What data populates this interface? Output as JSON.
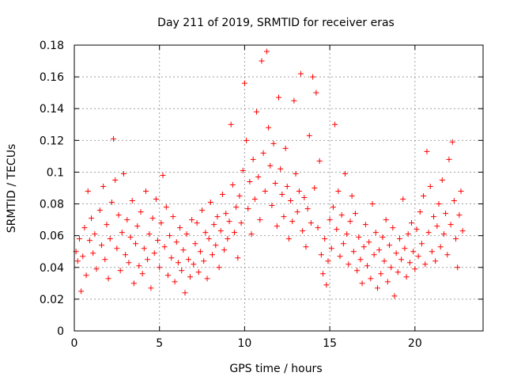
{
  "chart_data": {
    "type": "scatter",
    "title": "Day 211 of 2019, SRMTID for receiver eras",
    "xlabel": "GPS time / hours",
    "ylabel": "SRMTID / TECUs",
    "xlim": [
      0,
      24
    ],
    "ylim": [
      0,
      0.18
    ],
    "x_ticks": [
      0,
      5,
      10,
      15,
      20
    ],
    "x_tick_labels": [
      "0",
      "5",
      "10",
      "15",
      "20"
    ],
    "y_ticks": [
      0,
      0.02,
      0.04,
      0.06,
      0.08,
      0.1,
      0.12,
      0.14,
      0.16,
      0.18
    ],
    "y_tick_labels": [
      "0",
      "0.02",
      "0.04",
      "0.06",
      "0.08",
      "0.1",
      "0.12",
      "0.14",
      "0.16",
      "0.18"
    ],
    "grid": true,
    "marker": "+",
    "color": "#ff0000",
    "series": [
      {
        "name": "SRMTID",
        "points": [
          [
            0.1,
            0.05
          ],
          [
            0.2,
            0.044
          ],
          [
            0.3,
            0.058
          ],
          [
            0.4,
            0.025
          ],
          [
            0.5,
            0.047
          ],
          [
            0.6,
            0.065
          ],
          [
            0.7,
            0.035
          ],
          [
            0.8,
            0.088
          ],
          [
            0.9,
            0.057
          ],
          [
            1.0,
            0.071
          ],
          [
            1.1,
            0.049
          ],
          [
            1.2,
            0.061
          ],
          [
            1.3,
            0.039
          ],
          [
            1.5,
            0.076
          ],
          [
            1.6,
            0.054
          ],
          [
            1.7,
            0.091
          ],
          [
            1.8,
            0.045
          ],
          [
            1.9,
            0.067
          ],
          [
            2.0,
            0.033
          ],
          [
            2.1,
            0.058
          ],
          [
            2.2,
            0.081
          ],
          [
            2.3,
            0.121
          ],
          [
            2.4,
            0.095
          ],
          [
            2.5,
            0.052
          ],
          [
            2.6,
            0.073
          ],
          [
            2.7,
            0.038
          ],
          [
            2.8,
            0.062
          ],
          [
            2.9,
            0.099
          ],
          [
            3.0,
            0.048
          ],
          [
            3.1,
            0.07
          ],
          [
            3.2,
            0.043
          ],
          [
            3.3,
            0.059
          ],
          [
            3.4,
            0.082
          ],
          [
            3.5,
            0.03
          ],
          [
            3.6,
            0.055
          ],
          [
            3.7,
            0.066
          ],
          [
            3.8,
            0.041
          ],
          [
            3.9,
            0.075
          ],
          [
            4.0,
            0.036
          ],
          [
            4.1,
            0.052
          ],
          [
            4.2,
            0.088
          ],
          [
            4.3,
            0.045
          ],
          [
            4.4,
            0.061
          ],
          [
            4.5,
            0.027
          ],
          [
            4.6,
            0.071
          ],
          [
            4.7,
            0.049
          ],
          [
            4.8,
            0.083
          ],
          [
            4.9,
            0.057
          ],
          [
            5.0,
            0.04
          ],
          [
            5.1,
            0.068
          ],
          [
            5.2,
            0.098
          ],
          [
            5.3,
            0.053
          ],
          [
            5.4,
            0.078
          ],
          [
            5.5,
            0.035
          ],
          [
            5.6,
            0.06
          ],
          [
            5.7,
            0.046
          ],
          [
            5.8,
            0.072
          ],
          [
            5.9,
            0.031
          ],
          [
            6.0,
            0.056
          ],
          [
            6.1,
            0.043
          ],
          [
            6.2,
            0.065
          ],
          [
            6.3,
            0.038
          ],
          [
            6.4,
            0.051
          ],
          [
            6.5,
            0.024
          ],
          [
            6.6,
            0.061
          ],
          [
            6.7,
            0.045
          ],
          [
            6.8,
            0.034
          ],
          [
            6.9,
            0.07
          ],
          [
            7.0,
            0.042
          ],
          [
            7.1,
            0.055
          ],
          [
            7.2,
            0.068
          ],
          [
            7.3,
            0.037
          ],
          [
            7.4,
            0.05
          ],
          [
            7.5,
            0.076
          ],
          [
            7.6,
            0.044
          ],
          [
            7.7,
            0.062
          ],
          [
            7.8,
            0.033
          ],
          [
            7.9,
            0.058
          ],
          [
            8.0,
            0.081
          ],
          [
            8.1,
            0.048
          ],
          [
            8.2,
            0.067
          ],
          [
            8.3,
            0.054
          ],
          [
            8.4,
            0.072
          ],
          [
            8.5,
            0.04
          ],
          [
            8.6,
            0.063
          ],
          [
            8.7,
            0.086
          ],
          [
            8.8,
            0.051
          ],
          [
            8.9,
            0.074
          ],
          [
            9.0,
            0.058
          ],
          [
            9.1,
            0.069
          ],
          [
            9.2,
            0.13
          ],
          [
            9.3,
            0.092
          ],
          [
            9.4,
            0.062
          ],
          [
            9.5,
            0.078
          ],
          [
            9.6,
            0.046
          ],
          [
            9.7,
            0.085
          ],
          [
            9.8,
            0.068
          ],
          [
            9.9,
            0.101
          ],
          [
            10.0,
            0.156
          ],
          [
            10.1,
            0.12
          ],
          [
            10.2,
            0.077
          ],
          [
            10.3,
            0.094
          ],
          [
            10.4,
            0.061
          ],
          [
            10.5,
            0.108
          ],
          [
            10.6,
            0.083
          ],
          [
            10.7,
            0.138
          ],
          [
            10.8,
            0.097
          ],
          [
            10.9,
            0.07
          ],
          [
            11.0,
            0.17
          ],
          [
            11.1,
            0.112
          ],
          [
            11.2,
            0.088
          ],
          [
            11.3,
            0.176
          ],
          [
            11.4,
            0.128
          ],
          [
            11.5,
            0.104
          ],
          [
            11.6,
            0.079
          ],
          [
            11.7,
            0.118
          ],
          [
            11.8,
            0.093
          ],
          [
            11.9,
            0.066
          ],
          [
            12.0,
            0.147
          ],
          [
            12.1,
            0.102
          ],
          [
            12.2,
            0.086
          ],
          [
            12.3,
            0.072
          ],
          [
            12.4,
            0.115
          ],
          [
            12.5,
            0.091
          ],
          [
            12.6,
            0.058
          ],
          [
            12.7,
            0.082
          ],
          [
            12.8,
            0.069
          ],
          [
            12.9,
            0.145
          ],
          [
            13.0,
            0.099
          ],
          [
            13.1,
            0.075
          ],
          [
            13.2,
            0.088
          ],
          [
            13.3,
            0.162
          ],
          [
            13.4,
            0.063
          ],
          [
            13.5,
            0.084
          ],
          [
            13.6,
            0.053
          ],
          [
            13.7,
            0.077
          ],
          [
            13.8,
            0.123
          ],
          [
            13.9,
            0.068
          ],
          [
            14.0,
            0.16
          ],
          [
            14.1,
            0.09
          ],
          [
            14.2,
            0.15
          ],
          [
            14.3,
            0.065
          ],
          [
            14.4,
            0.107
          ],
          [
            14.5,
            0.048
          ],
          [
            14.6,
            0.036
          ],
          [
            14.7,
            0.058
          ],
          [
            14.8,
            0.029
          ],
          [
            14.9,
            0.044
          ],
          [
            15.0,
            0.07
          ],
          [
            15.1,
            0.052
          ],
          [
            15.2,
            0.078
          ],
          [
            15.3,
            0.13
          ],
          [
            15.4,
            0.064
          ],
          [
            15.5,
            0.088
          ],
          [
            15.6,
            0.047
          ],
          [
            15.7,
            0.073
          ],
          [
            15.8,
            0.055
          ],
          [
            15.9,
            0.099
          ],
          [
            16.0,
            0.061
          ],
          [
            16.1,
            0.042
          ],
          [
            16.2,
            0.069
          ],
          [
            16.3,
            0.085
          ],
          [
            16.4,
            0.05
          ],
          [
            16.5,
            0.074
          ],
          [
            16.6,
            0.038
          ],
          [
            16.7,
            0.059
          ],
          [
            16.8,
            0.045
          ],
          [
            16.9,
            0.03
          ],
          [
            17.0,
            0.053
          ],
          [
            17.1,
            0.067
          ],
          [
            17.2,
            0.041
          ],
          [
            17.3,
            0.056
          ],
          [
            17.4,
            0.033
          ],
          [
            17.5,
            0.08
          ],
          [
            17.6,
            0.048
          ],
          [
            17.7,
            0.062
          ],
          [
            17.8,
            0.027
          ],
          [
            17.9,
            0.051
          ],
          [
            18.0,
            0.036
          ],
          [
            18.1,
            0.059
          ],
          [
            18.2,
            0.044
          ],
          [
            18.3,
            0.07
          ],
          [
            18.4,
            0.031
          ],
          [
            18.5,
            0.054
          ],
          [
            18.6,
            0.04
          ],
          [
            18.7,
            0.065
          ],
          [
            18.8,
            0.022
          ],
          [
            18.9,
            0.049
          ],
          [
            19.0,
            0.037
          ],
          [
            19.1,
            0.058
          ],
          [
            19.2,
            0.045
          ],
          [
            19.3,
            0.083
          ],
          [
            19.4,
            0.052
          ],
          [
            19.5,
            0.034
          ],
          [
            19.6,
            0.061
          ],
          [
            19.7,
            0.043
          ],
          [
            19.8,
            0.068
          ],
          [
            19.9,
            0.05
          ],
          [
            20.0,
            0.039
          ],
          [
            20.1,
            0.064
          ],
          [
            20.2,
            0.047
          ],
          [
            20.3,
            0.075
          ],
          [
            20.4,
            0.055
          ],
          [
            20.5,
            0.085
          ],
          [
            20.6,
            0.042
          ],
          [
            20.7,
            0.113
          ],
          [
            20.8,
            0.062
          ],
          [
            20.9,
            0.091
          ],
          [
            21.0,
            0.05
          ],
          [
            21.1,
            0.072
          ],
          [
            21.2,
            0.044
          ],
          [
            21.3,
            0.066
          ],
          [
            21.4,
            0.08
          ],
          [
            21.5,
            0.053
          ],
          [
            21.6,
            0.095
          ],
          [
            21.7,
            0.061
          ],
          [
            21.8,
            0.074
          ],
          [
            21.9,
            0.048
          ],
          [
            22.0,
            0.108
          ],
          [
            22.1,
            0.067
          ],
          [
            22.2,
            0.119
          ],
          [
            22.3,
            0.082
          ],
          [
            22.4,
            0.058
          ],
          [
            22.5,
            0.04
          ],
          [
            22.6,
            0.073
          ],
          [
            22.7,
            0.088
          ],
          [
            22.8,
            0.063
          ]
        ]
      }
    ]
  }
}
